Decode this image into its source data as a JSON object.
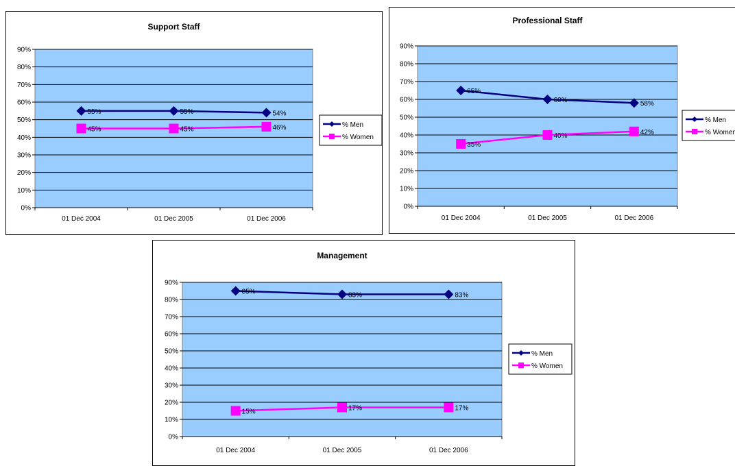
{
  "colors": {
    "plot_area": "#99ccff",
    "men": "#000080",
    "women": "#ff00ff",
    "grid": "#000000"
  },
  "chart_data": [
    {
      "type": "line",
      "title": "Support Staff",
      "categories": [
        "01 Dec 2004",
        "01 Dec 2005",
        "01 Dec 2006"
      ],
      "ylim": [
        0,
        90
      ],
      "yticks": [
        "0%",
        "10%",
        "20%",
        "30%",
        "40%",
        "50%",
        "60%",
        "70%",
        "80%",
        "90%"
      ],
      "grid": true,
      "legend_position": "right",
      "series": [
        {
          "name": "% Men",
          "values": [
            55,
            55,
            54
          ],
          "labels": [
            "55%",
            "55%",
            "54%"
          ],
          "marker": "diamond"
        },
        {
          "name": "% Women",
          "values": [
            45,
            45,
            46
          ],
          "labels": [
            "45%",
            "45%",
            "46%"
          ],
          "marker": "square"
        }
      ]
    },
    {
      "type": "line",
      "title": "Professional Staff",
      "categories": [
        "01 Dec 2004",
        "01 Dec 2005",
        "01 Dec 2006"
      ],
      "ylim": [
        0,
        90
      ],
      "yticks": [
        "0%",
        "10%",
        "20%",
        "30%",
        "40%",
        "50%",
        "60%",
        "70%",
        "80%",
        "90%"
      ],
      "grid": true,
      "legend_position": "right",
      "series": [
        {
          "name": "% Men",
          "values": [
            65,
            60,
            58
          ],
          "labels": [
            "65%",
            "60%",
            "58%"
          ],
          "marker": "diamond"
        },
        {
          "name": "% Women",
          "values": [
            35,
            40,
            42
          ],
          "labels": [
            "35%",
            "40%",
            "42%"
          ],
          "marker": "square"
        }
      ]
    },
    {
      "type": "line",
      "title": "Management",
      "categories": [
        "01 Dec 2004",
        "01 Dec 2005",
        "01 Dec 2006"
      ],
      "ylim": [
        0,
        90
      ],
      "yticks": [
        "0%",
        "10%",
        "20%",
        "30%",
        "40%",
        "50%",
        "60%",
        "70%",
        "80%",
        "90%"
      ],
      "grid": true,
      "legend_position": "right",
      "series": [
        {
          "name": "% Men",
          "values": [
            85,
            83,
            83
          ],
          "labels": [
            "85%",
            "83%",
            "83%"
          ],
          "marker": "diamond"
        },
        {
          "name": "% Women",
          "values": [
            15,
            17,
            17
          ],
          "labels": [
            "15%",
            "17%",
            "17%"
          ],
          "marker": "square"
        }
      ]
    }
  ]
}
